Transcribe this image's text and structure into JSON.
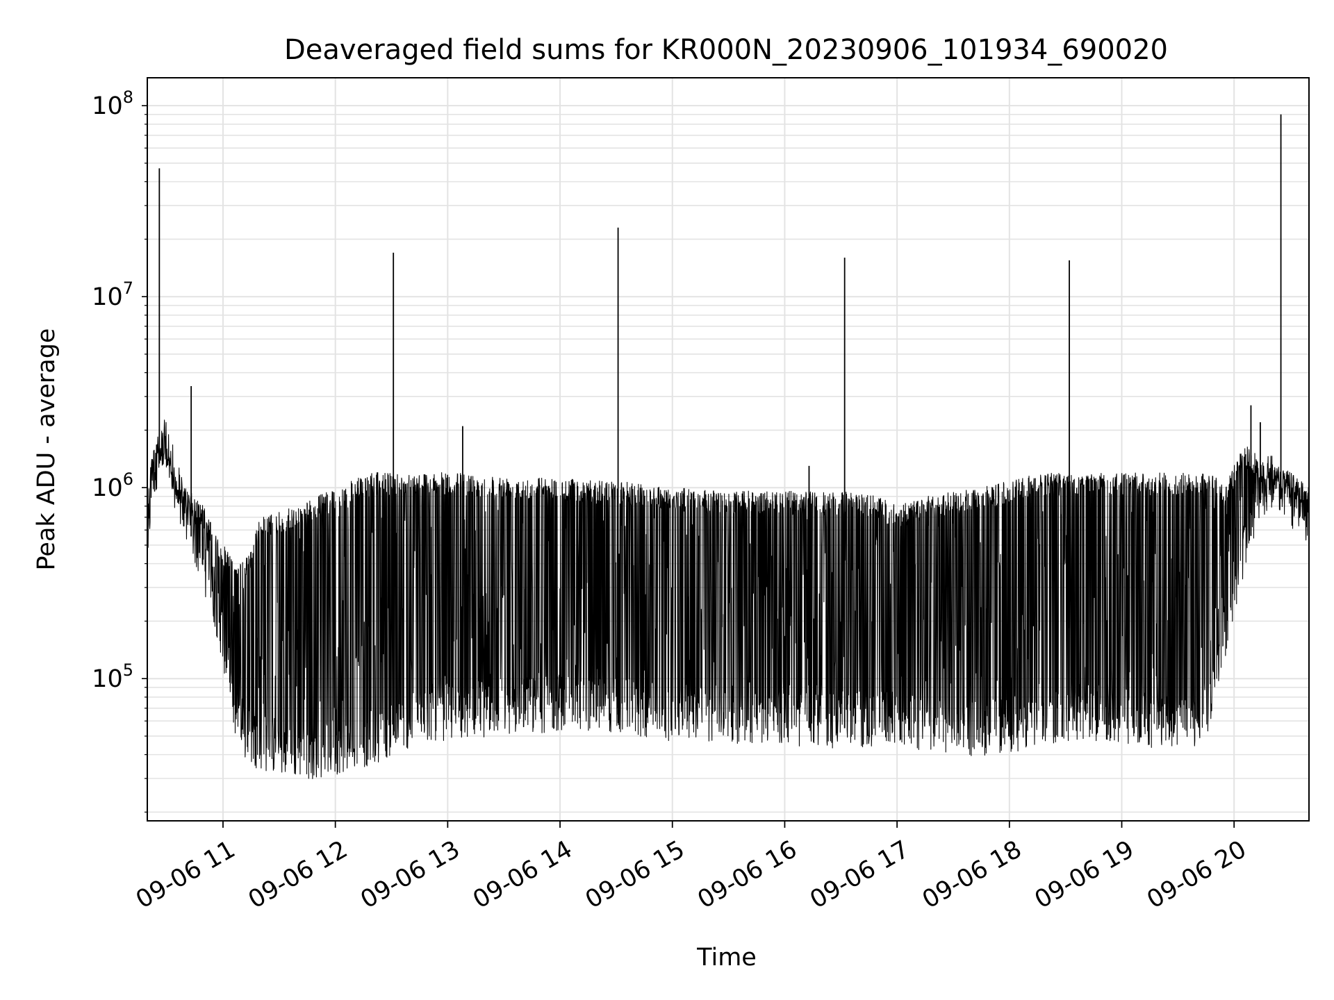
{
  "chart_data": {
    "type": "line",
    "title": "Deaveraged field sums for KR000N_20230906_101934_690020",
    "xlabel": "Time",
    "ylabel": "Peak ADU - average",
    "yscale": "log",
    "ylim": [
      18000,
      140000000
    ],
    "xlim": [
      "09-06 10:19:34",
      "09-06 20:40:00"
    ],
    "grid": true,
    "line_color": "#000000",
    "x_ticks": [
      {
        "hour": 11,
        "label": "09-06 11"
      },
      {
        "hour": 12,
        "label": "09-06 12"
      },
      {
        "hour": 13,
        "label": "09-06 13"
      },
      {
        "hour": 14,
        "label": "09-06 14"
      },
      {
        "hour": 15,
        "label": "09-06 15"
      },
      {
        "hour": 16,
        "label": "09-06 16"
      },
      {
        "hour": 17,
        "label": "09-06 17"
      },
      {
        "hour": 18,
        "label": "09-06 18"
      },
      {
        "hour": 19,
        "label": "09-06 19"
      },
      {
        "hour": 20,
        "label": "09-06 20"
      }
    ],
    "y_ticks": [
      {
        "exp": 5,
        "base": "10",
        "sup": "5"
      },
      {
        "exp": 6,
        "base": "10",
        "sup": "6"
      },
      {
        "exp": 7,
        "base": "10",
        "sup": "7"
      },
      {
        "exp": 8,
        "base": "10",
        "sup": "8"
      }
    ],
    "series": [
      {
        "x": [
          "10:20",
          "10:22",
          "10:25",
          "10:30",
          "10:35",
          "10:40",
          "10:45",
          "10:50",
          "10:55",
          "11:00",
          "11:05",
          "11:10",
          "11:15",
          "11:20",
          "11:30",
          "11:40",
          "11:50",
          "12:00",
          "12:10",
          "12:20",
          "12:30",
          "12:40",
          "12:50",
          "13:00",
          "13:15",
          "13:30",
          "13:45",
          "14:00",
          "14:15",
          "14:30",
          "14:45",
          "15:00",
          "15:15",
          "15:30",
          "15:45",
          "16:00",
          "16:15",
          "16:30",
          "16:45",
          "17:00",
          "17:15",
          "17:30",
          "17:45",
          "18:00",
          "18:15",
          "18:30",
          "18:45",
          "19:00",
          "19:15",
          "19:30",
          "19:40",
          "19:45",
          "19:50",
          "19:55",
          "20:00",
          "20:05",
          "20:10",
          "20:15",
          "20:20",
          "20:30",
          "20:40"
        ],
        "values": [
          500000,
          1000000,
          1300000,
          1500000,
          900000,
          650000,
          500000,
          350000,
          250000,
          150000,
          70000,
          50000,
          45000,
          42000,
          40000,
          38000,
          38000,
          40000,
          42000,
          45000,
          50000,
          55000,
          60000,
          60000,
          62000,
          65000,
          65000,
          68000,
          68000,
          65000,
          62000,
          60000,
          60000,
          58000,
          58000,
          56000,
          55000,
          55000,
          55000,
          55000,
          52000,
          50000,
          50000,
          52000,
          55000,
          60000,
          60000,
          58000,
          55000,
          55000,
          56000,
          62000,
          90000,
          160000,
          280000,
          420000,
          600000,
          900000,
          950000,
          800000,
          600000
        ],
        "envelope_upper": [
          1200000,
          1500000,
          1800000,
          1600000,
          1100000,
          1000000,
          900000,
          800000,
          600000,
          500000,
          450000,
          400000,
          500000,
          700000,
          750000,
          800000,
          900000,
          1000000,
          1100000,
          1200000,
          1200000,
          1200000,
          1200000,
          1200000,
          1180000,
          1150000,
          1150000,
          1120000,
          1100000,
          1080000,
          1050000,
          1000000,
          980000,
          960000,
          960000,
          960000,
          950000,
          950000,
          950000,
          800000,
          900000,
          950000,
          1000000,
          1100000,
          1200000,
          1200000,
          1200000,
          1200000,
          1200000,
          1200000,
          1200000,
          1200000,
          1150000,
          1000000,
          1300000,
          1700000,
          1600000,
          1400000,
          1300000,
          1200000,
          1000000
        ]
      }
    ],
    "spikes": [
      {
        "time": "10:26",
        "value": 47000000
      },
      {
        "time": "10:43",
        "value": 3400000
      },
      {
        "time": "12:31",
        "value": 17000000
      },
      {
        "time": "13:08",
        "value": 2100000
      },
      {
        "time": "14:31",
        "value": 23000000
      },
      {
        "time": "16:32",
        "value": 16000000
      },
      {
        "time": "16:13",
        "value": 1300000
      },
      {
        "time": "18:32",
        "value": 15500000
      },
      {
        "time": "20:09",
        "value": 2700000
      },
      {
        "time": "20:14",
        "value": 2200000
      },
      {
        "time": "20:25",
        "value": 90000000
      }
    ]
  }
}
